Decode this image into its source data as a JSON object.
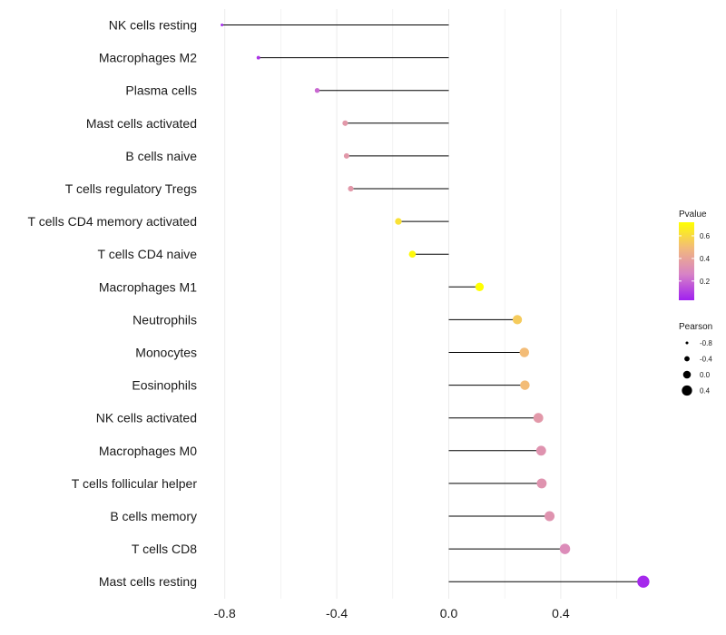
{
  "chart_data": {
    "type": "lollipop",
    "title": "",
    "xlabel": "",
    "ylabel": "",
    "xlim": [
      -0.82,
      0.72
    ],
    "x_ticks": [
      -0.8,
      -0.4,
      0.0,
      0.4
    ],
    "x_tick_labels": [
      "-0.8",
      "-0.4",
      "0.0",
      "0.4"
    ],
    "grid": true,
    "categories": [
      "NK cells resting",
      "Macrophages M2",
      "Plasma cells",
      "Mast cells activated",
      "B cells naive",
      "T cells regulatory  Tregs ",
      "T cells CD4 memory activated",
      "T cells CD4 naive",
      "Macrophages M1",
      "Neutrophils",
      "Monocytes",
      "Eosinophils",
      "NK cells activated",
      "Macrophages M0",
      "T cells follicular helper",
      "B cells memory",
      "T cells CD8",
      "Mast cells resting"
    ],
    "values": [
      -0.81,
      -0.68,
      -0.47,
      -0.37,
      -0.365,
      -0.35,
      -0.18,
      -0.13,
      0.11,
      0.245,
      0.27,
      0.272,
      0.32,
      0.33,
      0.332,
      0.36,
      0.415,
      0.695
    ],
    "pvalues": [
      0.05,
      0.08,
      0.2,
      0.35,
      0.35,
      0.35,
      0.62,
      0.7,
      0.72,
      0.55,
      0.5,
      0.5,
      0.35,
      0.33,
      0.33,
      0.33,
      0.3,
      0.05
    ],
    "legends": {
      "color": {
        "title": "Pvalue",
        "range": [
          0.03,
          0.72
        ],
        "ticks": [
          0.2,
          0.4,
          0.6
        ],
        "tick_labels": [
          "0.2",
          "0.4",
          "0.6"
        ],
        "colors": [
          "#a020f0",
          "#d782c6",
          "#f2b97c",
          "#ffff00"
        ]
      },
      "size": {
        "title": "Pearson",
        "values": [
          -0.8,
          -0.4,
          0.0,
          0.4
        ],
        "labels": [
          "-0.8",
          "-0.4",
          "0.0",
          "0.4"
        ],
        "color": "#000000"
      }
    },
    "stem_color": "#000000",
    "grid_color": "#ebebeb"
  }
}
